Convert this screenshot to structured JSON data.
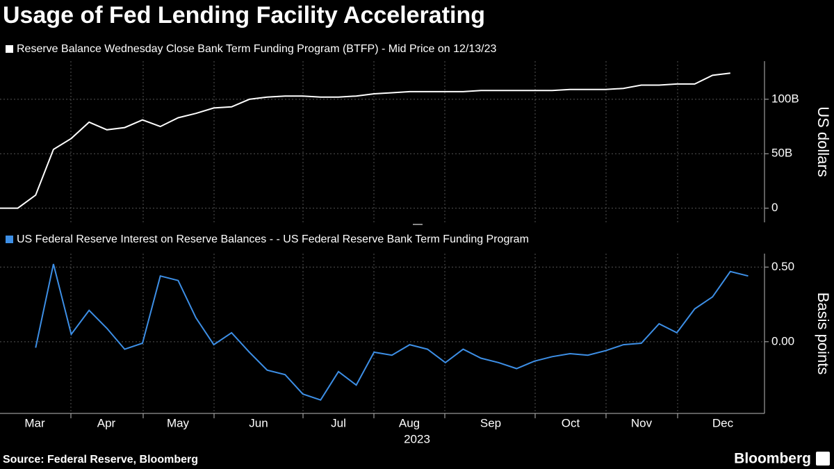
{
  "title": "Usage of Fed Lending Facility Accelerating",
  "source": "Source: Federal Reserve, Bloomberg",
  "logo": "Bloomberg",
  "x_labels": [
    "Mar",
    "Apr",
    "May",
    "Jun",
    "Jul",
    "Aug",
    "Sep",
    "Oct",
    "Nov",
    "Dec"
  ],
  "x_axis_label": "2023",
  "chart_data": [
    {
      "type": "line",
      "series": [
        {
          "name": "Reserve Balance Wednesday Close Bank Term Funding Program (BTFP) - Mid Price on 12/13/23",
          "color": "#ffffff",
          "values": [
            0,
            0,
            12,
            54,
            64,
            79,
            72,
            74,
            81,
            75,
            83,
            87,
            92,
            93,
            100,
            102,
            103,
            103,
            102,
            102,
            103,
            105,
            106,
            107,
            107,
            107,
            107,
            108,
            108,
            108,
            108,
            108,
            109,
            109,
            109,
            110,
            113,
            113,
            114,
            114,
            122,
            124,
            null
          ]
        }
      ],
      "ylabel": "US dollars",
      "ylim": [
        -13,
        135
      ],
      "yticks": [
        0,
        {
          "value": 50,
          "label": "50B"
        },
        {
          "value": 100,
          "label": "100B"
        }
      ],
      "grid": true
    },
    {
      "type": "line",
      "series": [
        {
          "name": "US Federal Reserve Interest on Reserve Balances - - US Federal Reserve Bank Term Funding Program",
          "color": "#3d8fe6",
          "values": [
            null,
            null,
            -0.04,
            0.52,
            0.05,
            0.21,
            0.09,
            -0.05,
            -0.01,
            0.44,
            0.41,
            0.16,
            -0.02,
            0.06,
            -0.07,
            -0.19,
            -0.22,
            -0.35,
            -0.39,
            -0.2,
            -0.29,
            -0.07,
            -0.09,
            -0.02,
            -0.05,
            -0.14,
            -0.05,
            -0.11,
            -0.14,
            -0.18,
            -0.13,
            -0.1,
            -0.08,
            -0.09,
            -0.06,
            -0.02,
            -0.01,
            0.12,
            0.06,
            0.22,
            0.3,
            0.47,
            0.44
          ]
        }
      ],
      "ylabel": "Basis points",
      "ylim": [
        -0.48,
        0.59
      ],
      "yticks": [
        {
          "value": 0,
          "label": "0.00"
        },
        {
          "value": 0.5,
          "label": "0.50"
        }
      ],
      "grid": true
    }
  ]
}
